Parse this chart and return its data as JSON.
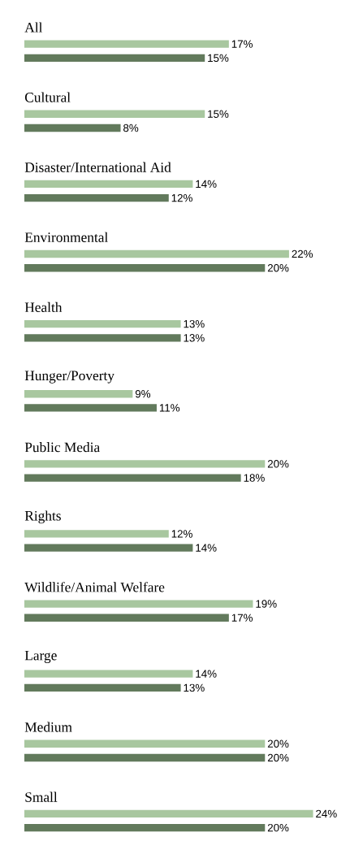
{
  "chart_data": {
    "type": "bar",
    "orientation": "horizontal",
    "categories": [
      "All",
      "Cultural",
      "Disaster/International Aid",
      "Environmental",
      "Health",
      "Hunger/Poverty",
      "Public Media",
      "Rights",
      "Wildlife/Animal Welfare",
      "Large",
      "Medium",
      "Small"
    ],
    "series": [
      {
        "color": "#a8c79f",
        "values": [
          17,
          15,
          14,
          22,
          13,
          9,
          20,
          12,
          19,
          14,
          20,
          24
        ],
        "value_labels": [
          "17%",
          "15%",
          "14%",
          "22%",
          "13%",
          "9%",
          "20%",
          "12%",
          "19%",
          "14%",
          "20%",
          "24%"
        ]
      },
      {
        "color": "#627a5c",
        "values": [
          15,
          8,
          12,
          20,
          13,
          11,
          18,
          14,
          17,
          13,
          20,
          20
        ],
        "value_labels": [
          "15%",
          "8%",
          "12%",
          "20%",
          "13%",
          "11%",
          "18%",
          "14%",
          "17%",
          "13%",
          "20%",
          "20%"
        ]
      }
    ]
  }
}
